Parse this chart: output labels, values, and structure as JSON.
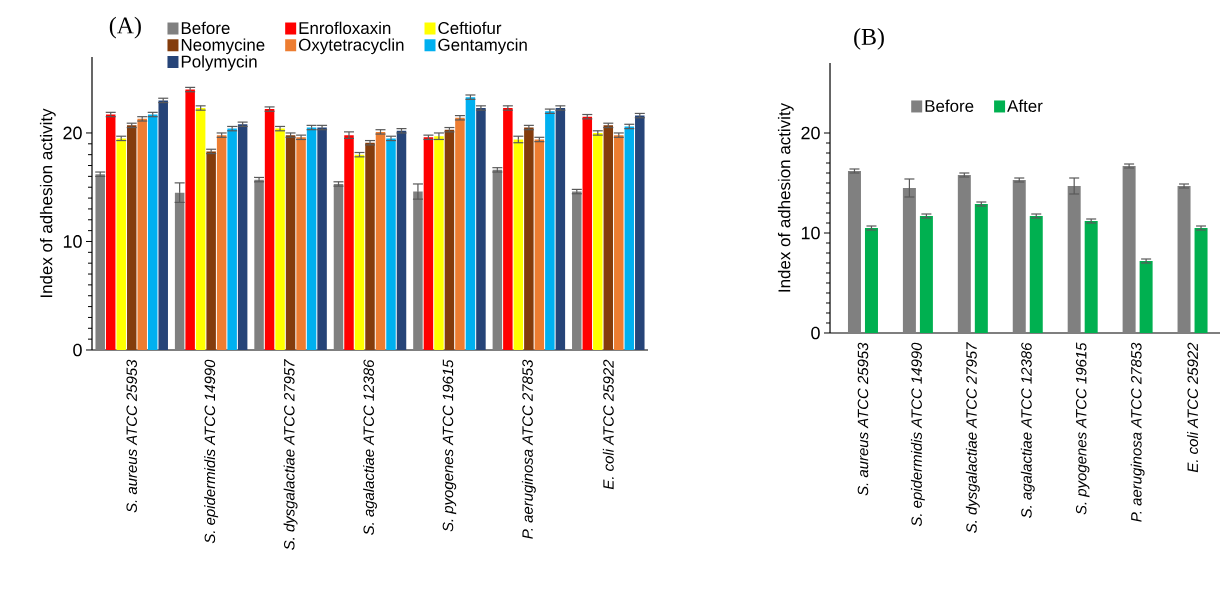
{
  "chart_data": [
    {
      "type": "bar",
      "title": "(A)",
      "ylabel": "Index of adhesion activity",
      "categories": [
        "S. aureus ATCC 25953",
        "S. epidermidis ATCC 14990",
        "S. dysgalactiae ATCC 27957",
        "S. agalactiae ATCC 12386",
        "S. pyogenes ATCC 19615",
        "P. aeruginosa ATCC 27853",
        "E. coli ATCC 25922"
      ],
      "series": [
        {
          "name": "Before",
          "color": "#808080",
          "values": [
            16.2,
            14.5,
            15.7,
            15.3,
            14.6,
            16.6,
            14.6
          ],
          "errors": [
            0.2,
            0.9,
            0.2,
            0.2,
            0.7,
            0.2,
            0.2
          ]
        },
        {
          "name": "Enrofloxaxin",
          "color": "#ff0000",
          "values": [
            21.7,
            24.0,
            22.2,
            19.8,
            19.6,
            22.3,
            21.5
          ],
          "errors": [
            0.2,
            0.2,
            0.2,
            0.3,
            0.2,
            0.2,
            0.2
          ]
        },
        {
          "name": "Ceftiofur",
          "color": "#ffff00",
          "values": [
            19.5,
            22.3,
            20.4,
            18.0,
            19.7,
            19.4,
            20.0
          ],
          "errors": [
            0.2,
            0.2,
            0.2,
            0.2,
            0.3,
            0.3,
            0.2
          ]
        },
        {
          "name": "Neomycine",
          "color": "#843c0c",
          "values": [
            20.7,
            18.3,
            19.8,
            19.1,
            20.3,
            20.5,
            20.7
          ],
          "errors": [
            0.2,
            0.2,
            0.2,
            0.2,
            0.2,
            0.2,
            0.2
          ]
        },
        {
          "name": "Oxytetracyclin",
          "color": "#ed7d31",
          "values": [
            21.3,
            19.8,
            19.6,
            20.1,
            21.4,
            19.4,
            19.8
          ],
          "errors": [
            0.2,
            0.2,
            0.2,
            0.2,
            0.2,
            0.2,
            0.2
          ]
        },
        {
          "name": "Gentamycin",
          "color": "#00b0f0",
          "values": [
            21.7,
            20.4,
            20.5,
            19.5,
            23.3,
            22.0,
            20.6
          ],
          "errors": [
            0.2,
            0.2,
            0.2,
            0.2,
            0.2,
            0.2,
            0.2
          ]
        },
        {
          "name": "Polymycin",
          "color": "#264478",
          "values": [
            23.0,
            20.8,
            20.5,
            20.2,
            22.3,
            22.3,
            21.6
          ],
          "errors": [
            0.2,
            0.2,
            0.2,
            0.2,
            0.2,
            0.2,
            0.2
          ]
        }
      ],
      "ylim": [
        0,
        27
      ],
      "yticks": [
        0,
        10,
        20
      ],
      "legend": "top"
    },
    {
      "type": "bar",
      "title": "(B)",
      "ylabel": "Index of adhesion activity",
      "categories": [
        "S. aureus ATCC 25953",
        "S. epidermidis ATCC 14990",
        "S. dysgalactiae ATCC 27957",
        "S. agalactiae ATCC 12386",
        "S. pyogenes ATCC 19615",
        "P. aeruginosa ATCC 27853",
        "E. coli ATCC 25922"
      ],
      "series": [
        {
          "name": "Before",
          "color": "#808080",
          "values": [
            16.2,
            14.5,
            15.8,
            15.3,
            14.7,
            16.7,
            14.7
          ],
          "errors": [
            0.2,
            0.9,
            0.2,
            0.2,
            0.8,
            0.2,
            0.2
          ]
        },
        {
          "name": "After",
          "color": "#00b050",
          "values": [
            10.5,
            11.7,
            12.9,
            11.7,
            11.2,
            7.2,
            10.5
          ],
          "errors": [
            0.2,
            0.2,
            0.2,
            0.2,
            0.2,
            0.2,
            0.2
          ]
        }
      ],
      "ylim": [
        0,
        27
      ],
      "yticks": [
        0,
        10,
        20
      ],
      "legend": "top left"
    }
  ]
}
